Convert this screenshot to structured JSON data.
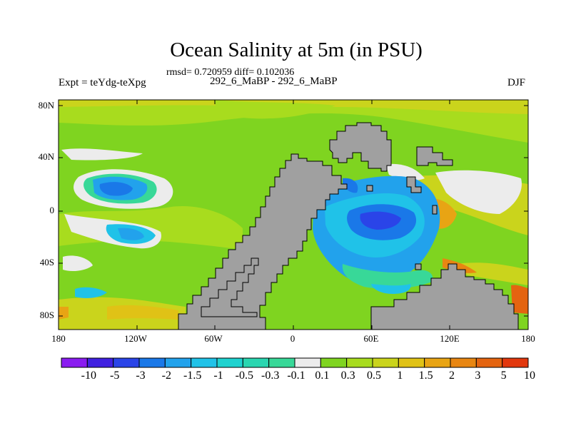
{
  "title": "Ocean Salinity at 5m (in PSU)",
  "stats_text": "rmsd= 0.720959 diff= 0.102036",
  "experiment_label": "Expt = teYdg-teXpg",
  "difference_label": "292_6_MaBP - 292_6_MaBP",
  "season": "DJF",
  "map": {
    "lat_labels": [
      "80N",
      "40N",
      "0",
      "40S",
      "80S"
    ],
    "lon_labels": [
      "180",
      "120W",
      "60W",
      "0",
      "60E",
      "120E",
      "180"
    ],
    "land_color": "#a0a0a0",
    "background_field_color": "#7fd420"
  },
  "colorbar": {
    "labels": [
      "-10",
      "-5",
      "-3",
      "-2",
      "-1.5",
      "-1",
      "-0.5",
      "-0.3",
      "-0.1",
      "0.1",
      "0.3",
      "0.5",
      "1",
      "1.5",
      "2",
      "3",
      "5",
      "10"
    ],
    "colors": [
      "#8a1cf0",
      "#4020e0",
      "#2a44e8",
      "#1a78e8",
      "#22a2ec",
      "#20c2e8",
      "#1fd2cf",
      "#2ad6b0",
      "#38d898",
      "#ececec",
      "#7fd420",
      "#a8dc1e",
      "#cad41c",
      "#e0c216",
      "#e8a414",
      "#e88612",
      "#e46410",
      "#e2380e"
    ]
  }
}
